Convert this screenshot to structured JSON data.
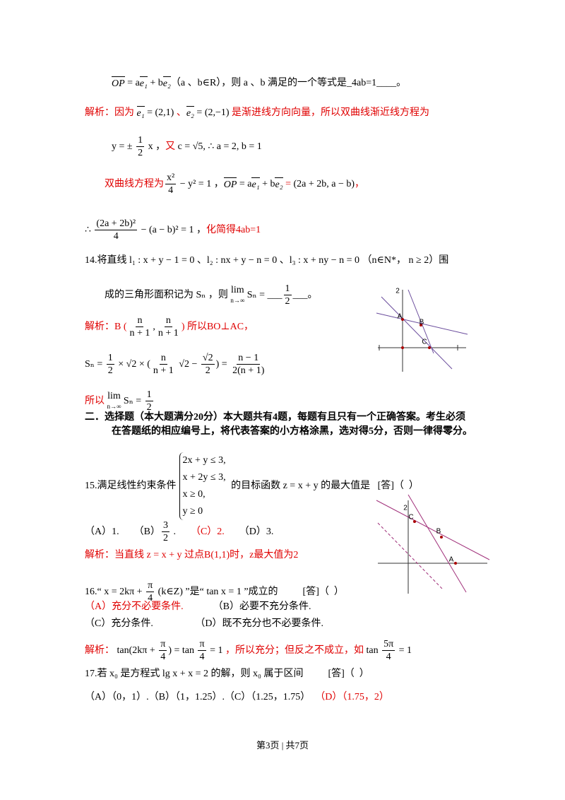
{
  "lines": [
    {
      "items": [
        {
          "t": "OP",
          "vec": true
        },
        " = a",
        {
          "t": "e₁",
          "vec": true
        },
        " + b",
        {
          "t": "e₂",
          "vec": true
        },
        "（a 、b∈R），则 a 、b 满足的一个等式是_4ab=1____。"
      ]
    },
    {
      "items": [
        {
          "t": "解析：因为 ",
          "red": true
        },
        {
          "t": "e₁",
          "vec": true
        },
        " = (2,1) ",
        {
          "t": "、",
          "red": true
        },
        {
          "t": "e₂",
          "vec": true
        },
        " = (2,−1) ",
        {
          "t": "是渐进线方向向量，所以双曲线渐近线方程为",
          "red": true
        }
      ]
    },
    {
      "items": [
        "y = ± ",
        {
          "num": "1",
          "den": "2"
        },
        " x ，",
        {
          "t": "又",
          "red": true
        },
        " c = √5, ∴ a = 2, b = 1"
      ]
    },
    {
      "items": [
        {
          "t": "双曲线方程为",
          "red": true
        },
        {
          "num": "x²",
          "den": "4"
        },
        " − y² = 1 ，",
        {
          "t": "OP",
          "vec": true
        },
        " = a",
        {
          "t": "e₁",
          "vec": true
        },
        " + b",
        {
          "t": "e₂",
          "vec": true
        },
        {
          "t": " = ",
          "red": true
        },
        "(2a + 2b, a − b)",
        {
          "t": "，",
          "red": true
        }
      ]
    },
    {
      "items": [
        "∴ ",
        {
          "num": "(2a + 2b)²",
          "den": "4"
        },
        " − (a − b)² = 1 ，",
        {
          "t": "化简得4ab=1",
          "red": true
        }
      ]
    },
    {
      "items": [
        "14.将直线 l₁ : x + y − 1 = 0 、l₂ : nx + y − n = 0 、l₃ : x + ny − n = 0 （n∈N*， n ≥ 2）围"
      ]
    },
    {
      "items": [
        "成的三角形面积记为 Sₙ ，则 ",
        {
          "lim": "lim",
          "under": "n→∞"
        },
        " Sₙ = ___",
        {
          "num": "1",
          "den": "2"
        },
        "___。"
      ]
    },
    {
      "items": [
        {
          "t": "解析：B (",
          "red": true
        },
        {
          "num": "n",
          "den": "n + 1"
        },
        ",",
        {
          "num": "n",
          "den": "n + 1"
        },
        {
          "t": ") 所以BO⊥AC，",
          "red": true
        }
      ]
    },
    {
      "items": [
        "Sₙ = ",
        {
          "num": "1",
          "den": "2"
        },
        " × √2 × (",
        {
          "num": "n",
          "den": "n + 1"
        },
        " √2 − ",
        {
          "num": "√2",
          "den": "2"
        },
        ") = ",
        {
          "num": "n − 1",
          "den": "2(n + 1)"
        }
      ]
    },
    {
      "items": [
        {
          "t": "所以 ",
          "red": true
        },
        {
          "lim": "lim",
          "under": "n→∞"
        },
        " Sₙ = ",
        {
          "num": "1",
          "den": "2"
        }
      ]
    },
    {
      "items": [
        {
          "t": "二．选择题（本大题满分20分）本大题共有4题，每题有且只有一个正确答案。考生必须",
          "bold": true
        }
      ]
    },
    {
      "items": [
        {
          "t": "在答题纸的相应编号上，将代表答案的小方格涂黑，选对得5分，否则一律得零分。",
          "bold": true
        }
      ]
    },
    {
      "items": [
        "15.满足线性约束条件",
        {
          "sys": [
            "2x + y ≤ 3,",
            "x + 2y ≤ 3,",
            "x ≥ 0,",
            "y ≥ 0"
          ]
        },
        " 的目标函数 z = x + y 的最大值是   [答]（  ）"
      ]
    },
    {
      "items": [
        "（A）1.      （B）",
        {
          "num": "3",
          "den": "2"
        },
        " .      ",
        {
          "t": "（C）2.",
          "red": true
        },
        "      （D）3."
      ]
    },
    {
      "items": [
        {
          "t": "解析：当直线 z = x + y 过点B(1,1)时，z最大值为2",
          "red": true
        }
      ]
    },
    {
      "items": [
        "16.“ x = 2kπ + ",
        {
          "num": "π",
          "den": "4"
        },
        " (k∈Z) ”是“ tan x = 1 ”成立的          [答]（  ）"
      ]
    },
    {
      "items": [
        {
          "t": "（A）充分不必要条件.",
          "red": true
        },
        "            （B）必要不充分条件."
      ]
    },
    {
      "items": [
        "（C）充分条件.                 （D）既不充分也不必要条件."
      ]
    },
    {
      "items": [
        {
          "t": "解析：",
          "red": true
        },
        " tan(2kπ + ",
        {
          "num": "π",
          "den": "4"
        },
        ") = tan ",
        {
          "num": "π",
          "den": "4"
        },
        " = 1 ",
        {
          "t": "，所以充分；但反之不成立，如 ",
          "red": true
        },
        "tan ",
        {
          "num": "5π",
          "den": "4"
        },
        " = 1"
      ]
    },
    {
      "items": [
        "17.若 x₀ 是方程式 lg x + x = 2 的解，则 x₀ 属于区间          [答]（  ）"
      ]
    },
    {
      "items": [
        "（A）（0，1）.（B）（1，1.25）.（C）（1.25，1.75）  ",
        {
          "t": "（D）（1.75，2）",
          "red": true
        }
      ]
    }
  ],
  "figures": [
    {
      "labels": [
        "2",
        "A",
        "B",
        "C"
      ]
    },
    {
      "labels": [
        "2",
        "C",
        "B",
        "A"
      ]
    }
  ],
  "footer": "第3页 | 共7页"
}
